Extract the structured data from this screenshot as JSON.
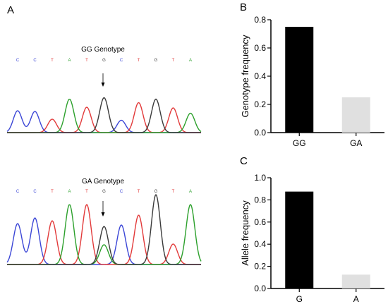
{
  "panels": {
    "a": {
      "letter": "A",
      "traces": [
        {
          "genotype_label": "GG Genotype",
          "bases": [
            "C",
            "C",
            "T",
            "A",
            "T",
            "G",
            "C",
            "T",
            "G",
            "T",
            "A"
          ],
          "peak_heights": [
            0.62,
            0.6,
            0.38,
            0.95,
            0.72,
            0.99,
            0.35,
            0.85,
            0.95,
            0.7,
            0.55
          ],
          "secondary_peak": null
        },
        {
          "genotype_label": "GA Genotype",
          "bases": [
            "C",
            "C",
            "T",
            "A",
            "T",
            "G",
            "C",
            "T",
            "G",
            "T",
            "A"
          ],
          "peak_heights": [
            0.58,
            0.66,
            0.62,
            0.85,
            0.85,
            0.54,
            0.56,
            0.7,
            0.99,
            0.29,
            0.85
          ],
          "secondary_peak": {
            "base": "A",
            "height": 0.28,
            "at_index": 5
          }
        }
      ],
      "base_colors": {
        "A": "#2ca02c",
        "C": "#3b46d6",
        "G": "#3a3a3a",
        "T": "#e23a3a"
      }
    },
    "b": {
      "letter": "B"
    },
    "c": {
      "letter": "C"
    }
  },
  "chart_data": [
    {
      "type": "bar",
      "panel": "B",
      "categories": [
        "GG",
        "GA"
      ],
      "values": [
        0.75,
        0.25
      ],
      "colors": [
        "#000000",
        "#e0e0e0"
      ],
      "ylabel": "Genotype frequency",
      "xlabel": "",
      "ylim": [
        0,
        0.8
      ],
      "yticks": [
        "0.0",
        "0.2",
        "0.4",
        "0.6",
        "0.8"
      ],
      "ytick_values": [
        0,
        0.2,
        0.4,
        0.6,
        0.8
      ]
    },
    {
      "type": "bar",
      "panel": "C",
      "categories": [
        "G",
        "A"
      ],
      "values": [
        0.875,
        0.125
      ],
      "colors": [
        "#000000",
        "#e0e0e0"
      ],
      "ylabel": "Allele frequency",
      "xlabel": "",
      "ylim": [
        0,
        1.0
      ],
      "yticks": [
        "0.0",
        "0.2",
        "0.4",
        "0.6",
        "0.8",
        "1.0"
      ],
      "ytick_values": [
        0,
        0.2,
        0.4,
        0.6,
        0.8,
        1.0
      ]
    }
  ]
}
